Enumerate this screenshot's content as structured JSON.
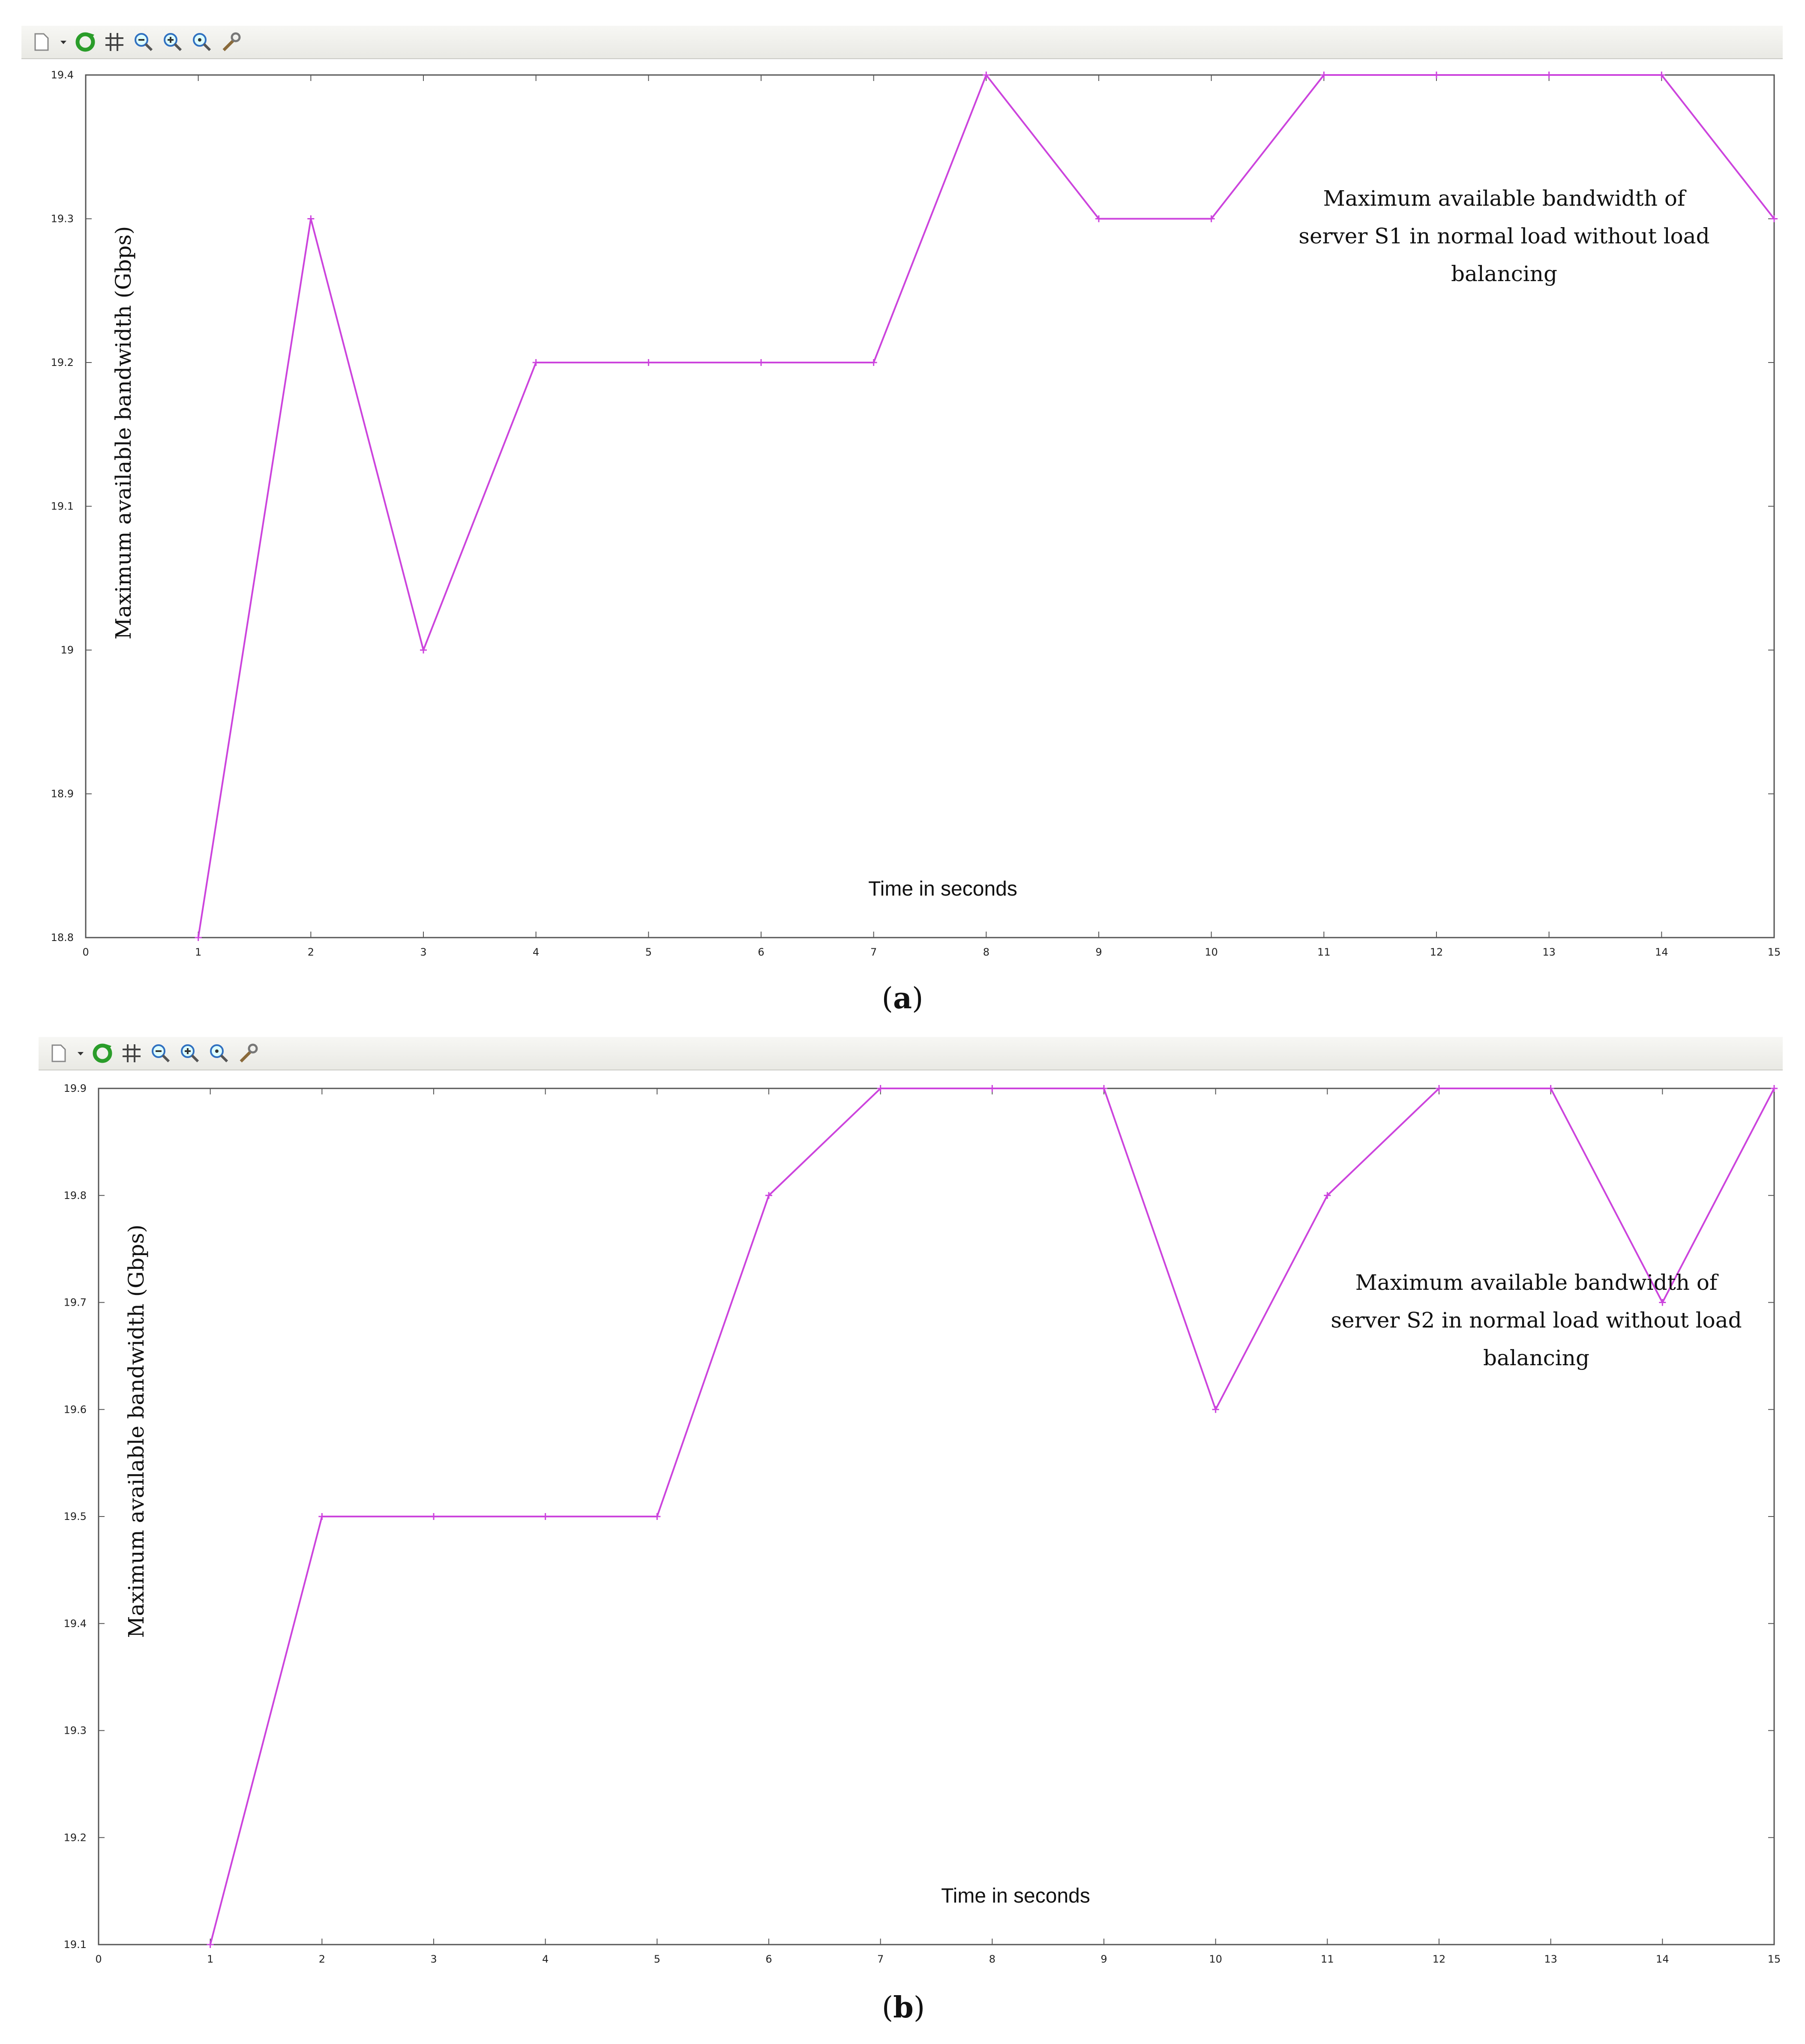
{
  "toolbar_icons": [
    "new-figure-icon",
    "dropdown-arrow-icon",
    "refresh-icon",
    "grid-icon",
    "zoom-out-icon",
    "zoom-in-icon",
    "zoom-reset-icon",
    "settings-wrench-icon"
  ],
  "colors": {
    "series": "#cc44dd",
    "axis": "#555555",
    "toolbar": "#efefea"
  },
  "chart_data": [
    {
      "type": "line",
      "panel_label": "a",
      "x": [
        1,
        2,
        3,
        4,
        5,
        6,
        7,
        8,
        9,
        10,
        11,
        12,
        13,
        14,
        15
      ],
      "values": [
        18.8,
        19.3,
        19.0,
        19.2,
        19.2,
        19.2,
        19.2,
        19.4,
        19.3,
        19.3,
        19.4,
        19.4,
        19.4,
        19.4,
        19.3
      ],
      "xlim": [
        0,
        15
      ],
      "ylim": [
        18.8,
        19.4
      ],
      "xticks": [
        "0",
        "1",
        "2",
        "3",
        "4",
        "5",
        "6",
        "7",
        "8",
        "9",
        "10",
        "11",
        "12",
        "13",
        "14",
        "15"
      ],
      "yticks": [
        "18.8",
        "18.9",
        "19",
        "19.1",
        "19.2",
        "19.3",
        "19.4"
      ],
      "xlabel": "Time in seconds",
      "ylabel": "Maximum available bandwidth (Gbps)",
      "annotation": [
        "Maximum available bandwidth of",
        "server S1 in normal load without load",
        "balancing"
      ]
    },
    {
      "type": "line",
      "panel_label": "b",
      "x": [
        1,
        2,
        3,
        4,
        5,
        6,
        7,
        8,
        9,
        10,
        11,
        12,
        13,
        14,
        15
      ],
      "values": [
        19.1,
        19.5,
        19.5,
        19.5,
        19.5,
        19.8,
        19.9,
        19.9,
        19.9,
        19.6,
        19.8,
        19.9,
        19.9,
        19.7,
        19.9
      ],
      "xlim": [
        0,
        15
      ],
      "ylim": [
        19.1,
        19.9
      ],
      "xticks": [
        "0",
        "1",
        "2",
        "3",
        "4",
        "5",
        "6",
        "7",
        "8",
        "9",
        "10",
        "11",
        "12",
        "13",
        "14",
        "15"
      ],
      "yticks": [
        "19.1",
        "19.2",
        "19.3",
        "19.4",
        "19.5",
        "19.6",
        "19.7",
        "19.8",
        "19.9"
      ],
      "xlabel": "Time in seconds",
      "ylabel": "Maximum available bandwidth (Gbps)",
      "annotation": [
        "Maximum available bandwidth of",
        "server S2 in normal load without load",
        "balancing"
      ]
    }
  ]
}
